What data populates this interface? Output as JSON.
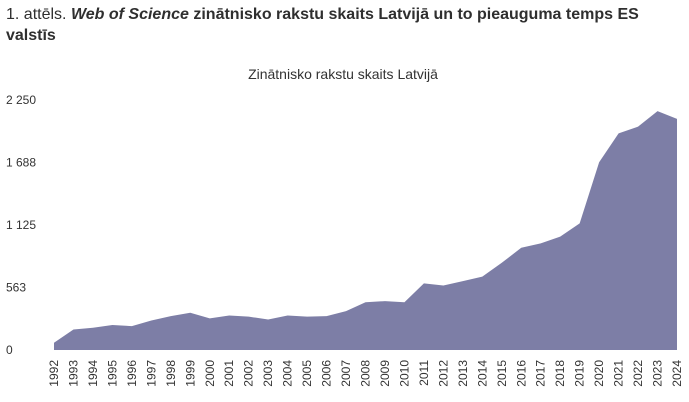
{
  "figure": {
    "number": "1. attēls.",
    "title_italic": "Web of Science",
    "title_rest": "zinātnisko rakstu skaits Latvijā un to pieauguma temps ES valstīs"
  },
  "colors": {
    "area_fill": "#7d7ea6"
  },
  "chart_data": {
    "type": "area",
    "title": "Zinātnisko rakstu skaits Latvijā",
    "xlabel": "",
    "ylabel": "",
    "ylim": [
      0,
      2250
    ],
    "yticks": [
      0,
      563,
      1125,
      1688,
      2250
    ],
    "ytick_labels": [
      "0",
      "563",
      "1 125",
      "1 688",
      "2 250"
    ],
    "grid": false,
    "categories": [
      "1992",
      "1993",
      "1994",
      "1995",
      "1996",
      "1997",
      "1998",
      "1999",
      "2000",
      "2001",
      "2002",
      "2003",
      "2004",
      "2005",
      "2006",
      "2007",
      "2008",
      "2009",
      "2010",
      "2011",
      "2012",
      "2013",
      "2014",
      "2015",
      "2016",
      "2017",
      "2018",
      "2019",
      "2020",
      "2021",
      "2022",
      "2023",
      "2024"
    ],
    "values": [
      65,
      185,
      200,
      225,
      215,
      265,
      305,
      335,
      285,
      310,
      300,
      275,
      310,
      300,
      305,
      350,
      430,
      440,
      430,
      600,
      580,
      620,
      660,
      785,
      920,
      960,
      1020,
      1140,
      1690,
      1950,
      2010,
      2150,
      2080
    ]
  }
}
